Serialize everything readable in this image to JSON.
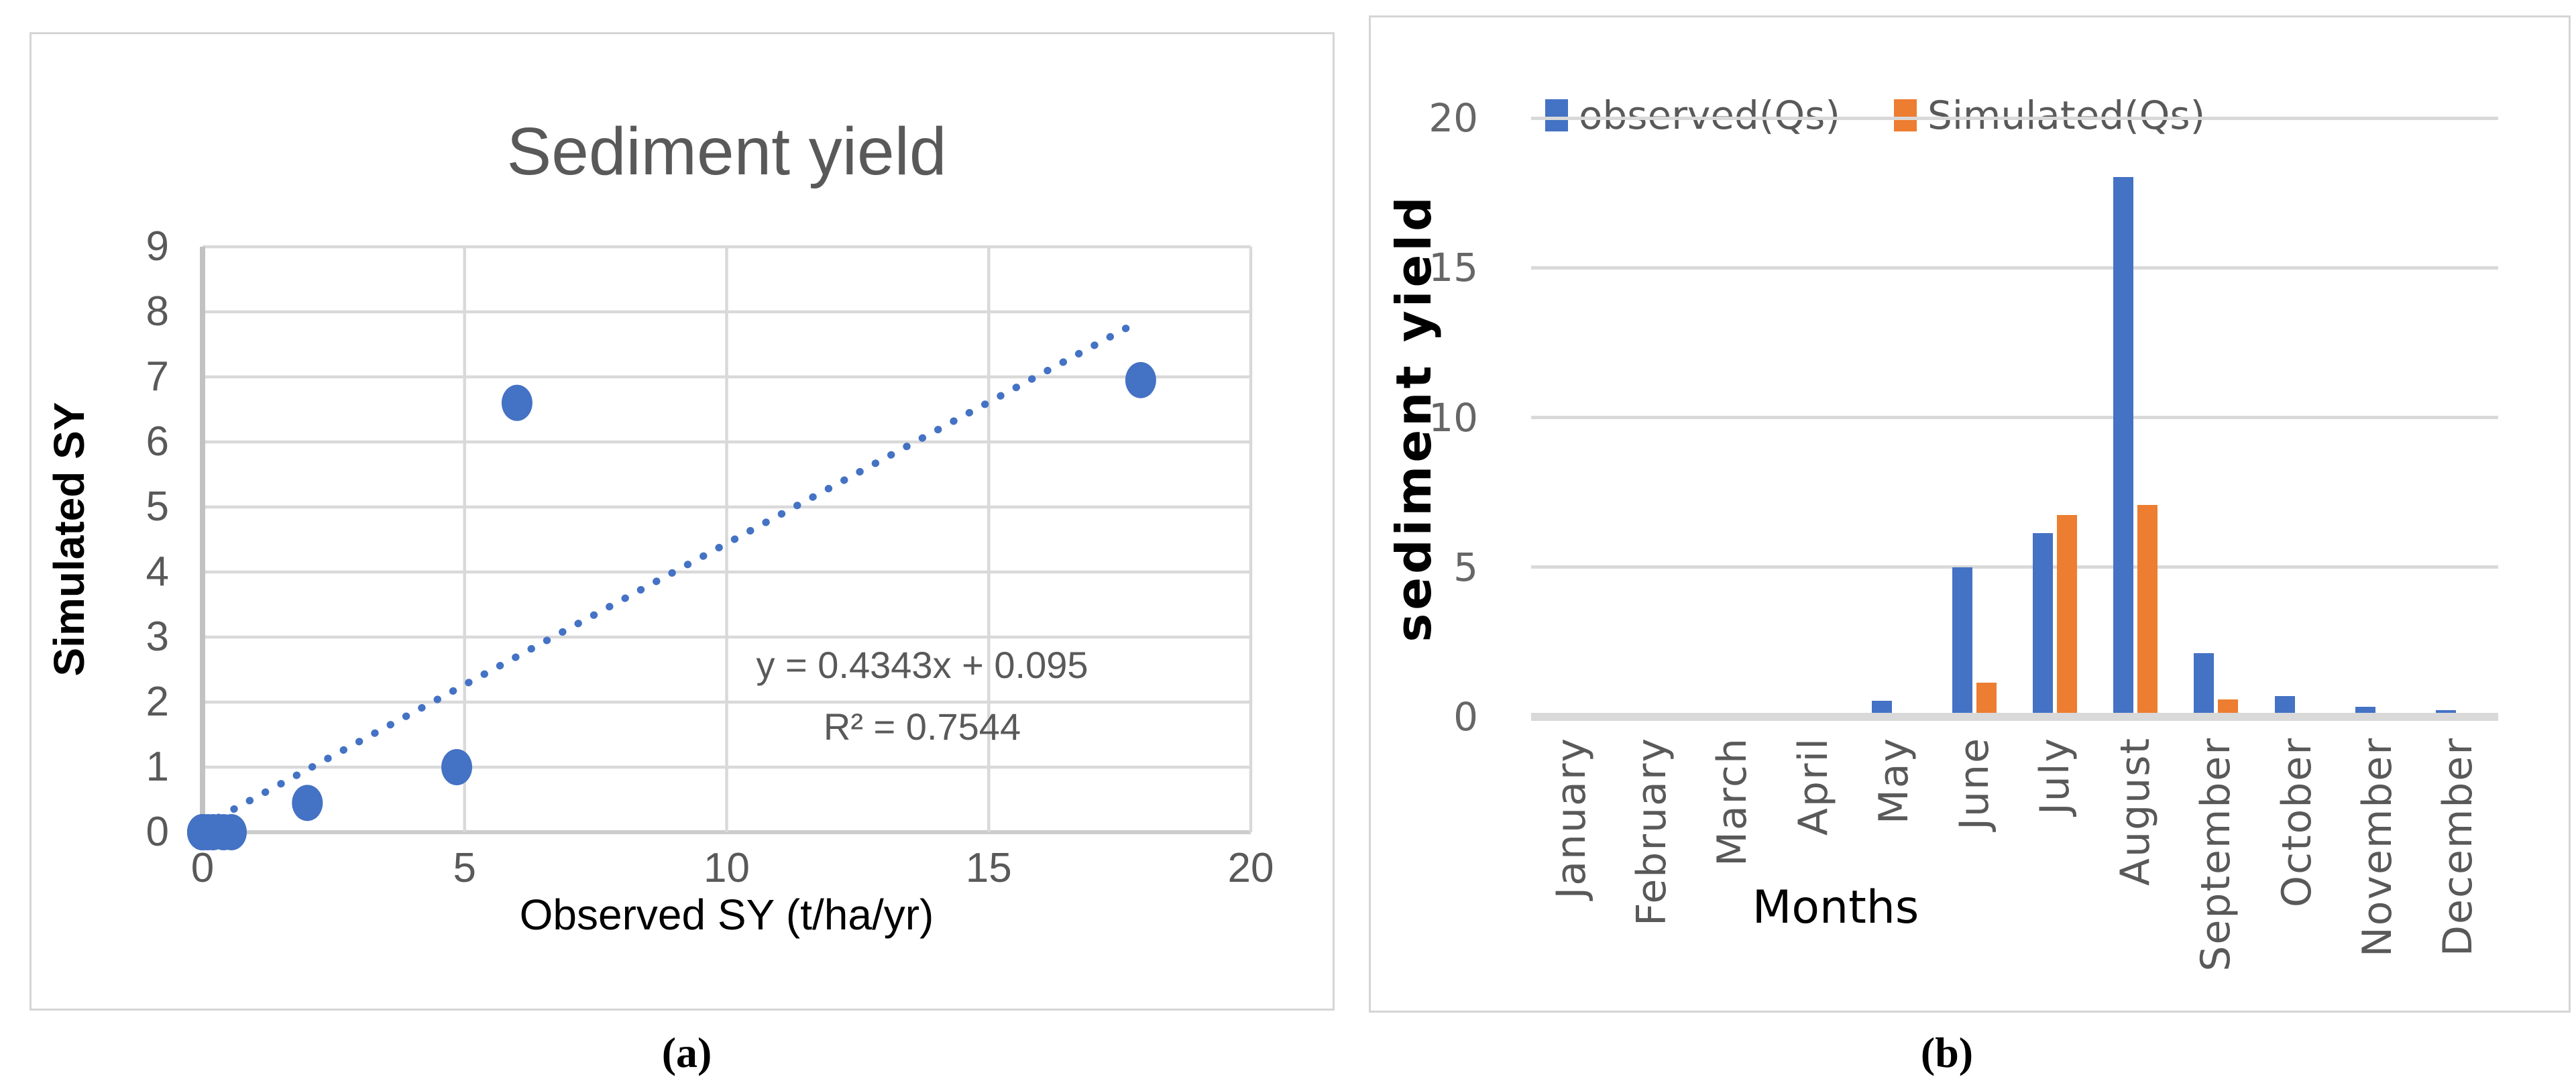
{
  "figure": {
    "caption_a": "(a)",
    "caption_b": "(b)"
  },
  "colors": {
    "blue": "#4472C4",
    "orange": "#ED7D31",
    "gridline": "#d9d9d9",
    "axis_line": "#c2c2c2",
    "tick_text": "#595959",
    "title_text": "#595959"
  },
  "scatter_panel": {
    "title": "Sediment yield",
    "x_label": "Observed SY (t/ha/yr)",
    "y_label": "Simulated SY",
    "equation_line1": "y = 0.4343x + 0.095",
    "equation_line2": "R² = 0.7544"
  },
  "bar_panel": {
    "x_label": "Months",
    "y_label": "sediment yield",
    "legend": [
      {
        "label": "observed(Qs)",
        "color": "#4472C4"
      },
      {
        "label": "Simulated(Qs)",
        "color": "#ED7D31"
      }
    ]
  },
  "chart_data": [
    {
      "type": "scatter",
      "title": "Sediment yield",
      "xlabel": "Observed SY (t/ha/yr)",
      "ylabel": "Simulated SY",
      "xlim": [
        0,
        20
      ],
      "ylim": [
        0,
        9
      ],
      "x_ticks": [
        0,
        5,
        10,
        15,
        20
      ],
      "y_ticks": [
        0,
        1,
        2,
        3,
        4,
        5,
        6,
        7,
        8,
        9
      ],
      "grid": true,
      "marker_color": "#4472C4",
      "points": [
        [
          0,
          0
        ],
        [
          0,
          0
        ],
        [
          0,
          0
        ],
        [
          0,
          0
        ],
        [
          0.4,
          0
        ],
        [
          4.85,
          1.0
        ],
        [
          6.0,
          6.6
        ],
        [
          17.9,
          6.95
        ],
        [
          2.0,
          0.45
        ],
        [
          0.55,
          0
        ],
        [
          0.2,
          0
        ],
        [
          0.1,
          0
        ]
      ],
      "trendline": {
        "slope": 0.4343,
        "intercept": 0.095,
        "x_start": 0.3,
        "x_end": 17.75,
        "equation": "y = 0.4343x + 0.095",
        "r_squared": 0.7544,
        "style": "dotted",
        "color": "#4472C4"
      }
    },
    {
      "type": "bar",
      "categories": [
        "January",
        "February",
        "March",
        "April",
        "May",
        "June",
        "July",
        "August",
        "September",
        "October",
        "November",
        "December"
      ],
      "series": [
        {
          "name": "observed(Qs)",
          "color": "#4472C4",
          "values": [
            0,
            0,
            0,
            0,
            0.4,
            4.85,
            6.0,
            17.9,
            2.0,
            0.55,
            0.2,
            0.1
          ]
        },
        {
          "name": "Simulated(Qs)",
          "color": "#ED7D31",
          "values": [
            0,
            0,
            0,
            0,
            0,
            1.0,
            6.6,
            6.95,
            0.45,
            0,
            0,
            0
          ]
        }
      ],
      "xlabel": "Months",
      "ylabel": "sediment yield",
      "ylim": [
        0,
        20
      ],
      "y_ticks": [
        0,
        5,
        10,
        15,
        20
      ],
      "grid": true,
      "legend_position": "top"
    }
  ]
}
